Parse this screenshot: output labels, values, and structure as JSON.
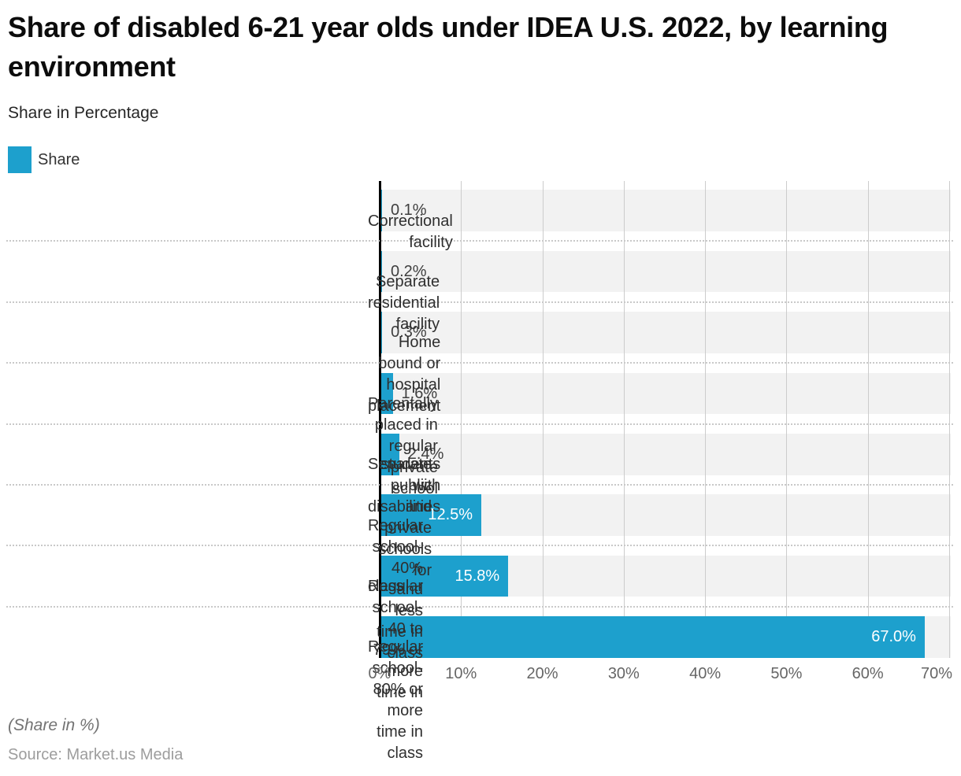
{
  "chart_data": {
    "type": "bar",
    "orientation": "horizontal",
    "title": "Share of disabled 6-21 year olds under IDEA U.S. 2022, by learning environment",
    "subtitle": "Share in Percentage",
    "legend": {
      "position": "top-left",
      "entries": [
        "Share"
      ]
    },
    "categories": [
      "Correctional facility",
      "Separate residential facility",
      "Home bound or hospital placement",
      "Parentally placed in regular private school",
      "Separate public and private schools for students with disabilities",
      "Regular school- 40% and less time in class",
      "Regular school- 40 to 79% or more time in class",
      "Regular school- 80% or more time in class"
    ],
    "category_display_lines": [
      [
        "Correctional facility"
      ],
      [
        "Separate residential facility"
      ],
      [
        "Home bound or hospital placement"
      ],
      [
        "Parentally placed in regular private school"
      ],
      [
        "Separate public and private schools for",
        "students with disabilities"
      ],
      [
        "Regular school- 40% and less time in class"
      ],
      [
        "Regular school- 40 to 79% or more time in",
        "class"
      ],
      [
        "Regular school- 80% or more time in class"
      ]
    ],
    "series": [
      {
        "name": "Share",
        "color": "#1da0cd",
        "values": [
          0.1,
          0.2,
          0.3,
          1.6,
          2.4,
          12.5,
          15.8,
          67.0
        ]
      }
    ],
    "value_labels": [
      "0.1%",
      "0.2%",
      "0.3%",
      "1.6%",
      "2.4%",
      "12.5%",
      "15.8%",
      "67.0%"
    ],
    "x_axis": {
      "min": 0,
      "max": 70.2,
      "tick_values": [
        0,
        10,
        20,
        30,
        40,
        50,
        60,
        70
      ],
      "tick_labels": [
        "0%",
        "10%",
        "20%",
        "30%",
        "40%",
        "50%",
        "60%",
        "70%"
      ],
      "grid": true
    },
    "footnote": "(Share in %)",
    "source": "Source: Market.us Media",
    "colors": {
      "bar": "#1da0cd",
      "row_band": "#f2f2f2",
      "gridline": "#cccccc",
      "separator": "#c9c9c9",
      "axis_line": "#000000",
      "value_label_inside": "#ffffff",
      "value_label_outside": "#3f3f3f"
    }
  }
}
